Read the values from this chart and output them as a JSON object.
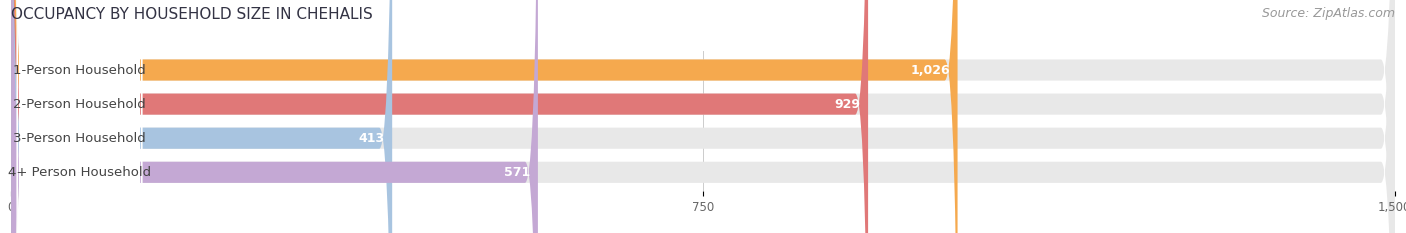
{
  "title": "OCCUPANCY BY HOUSEHOLD SIZE IN CHEHALIS",
  "source": "Source: ZipAtlas.com",
  "categories": [
    "1-Person Household",
    "2-Person Household",
    "3-Person Household",
    "4+ Person Household"
  ],
  "values": [
    1026,
    929,
    413,
    571
  ],
  "bar_colors": [
    "#F5A94E",
    "#E07878",
    "#A8C4E0",
    "#C4A8D4"
  ],
  "xlim_min": 0,
  "xlim_max": 1500,
  "xticks": [
    0,
    750,
    1500
  ],
  "bg_color": "#FFFFFF",
  "bar_bg_color": "#E8E8E8",
  "label_bg_color": "#FFFFFF",
  "grid_color": "#CCCCCC",
  "title_color": "#333344",
  "source_color": "#999999",
  "title_fontsize": 11,
  "source_fontsize": 9,
  "label_fontsize": 9.5,
  "value_fontsize": 9,
  "tick_fontsize": 8.5,
  "fig_width": 14.06,
  "fig_height": 2.33,
  "dpi": 100
}
